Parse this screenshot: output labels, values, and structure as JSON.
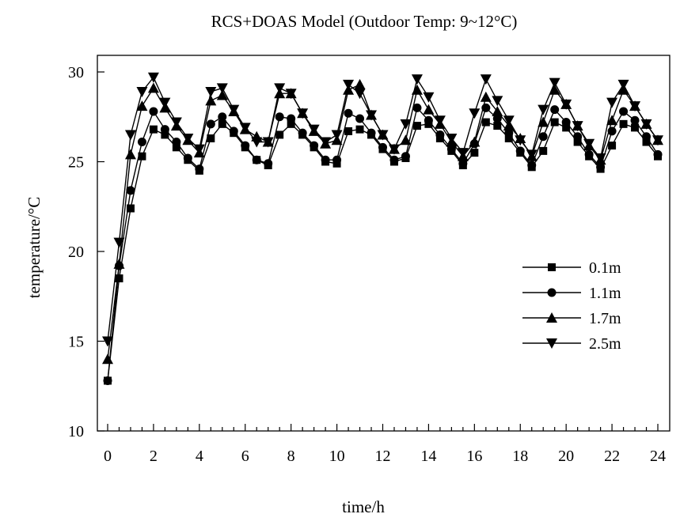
{
  "chart_data": {
    "type": "line",
    "title": "RCS+DOAS Model (Outdoor Temp: 9~12°C)",
    "xlabel": "time/h",
    "ylabel": "temperature/°C",
    "xlim": [
      0,
      24
    ],
    "ylim": [
      10,
      30
    ],
    "xticks": [
      0,
      2,
      4,
      6,
      8,
      10,
      12,
      14,
      16,
      18,
      20,
      22,
      24
    ],
    "yticks": [
      10,
      15,
      20,
      25,
      30
    ],
    "grid": false,
    "legend": {
      "position": "center-right"
    },
    "series": [
      {
        "name": "0.1m",
        "marker": "square",
        "x": [
          0,
          0.5,
          1,
          1.5,
          2,
          2.5,
          3,
          3.5,
          4,
          4.5,
          5,
          5.5,
          6,
          6.5,
          7,
          7.5,
          8,
          8.5,
          9,
          9.5,
          10,
          10.5,
          11,
          11.5,
          12,
          12.5,
          13,
          13.5,
          14,
          14.5,
          15,
          15.5,
          16,
          16.5,
          17,
          17.5,
          18,
          18.5,
          19,
          19.5,
          20,
          20.5,
          21,
          21.5,
          22,
          22.5,
          23,
          23.5,
          24
        ],
        "y": [
          12.8,
          18.5,
          22.4,
          25.3,
          26.8,
          26.5,
          25.8,
          25.1,
          24.5,
          26.3,
          27.1,
          26.6,
          25.8,
          25.1,
          24.8,
          26.5,
          27.1,
          26.5,
          25.8,
          25.0,
          24.9,
          26.7,
          26.8,
          26.5,
          25.7,
          25.0,
          25.2,
          27.0,
          27.1,
          26.3,
          25.6,
          24.8,
          25.5,
          27.2,
          27.0,
          26.3,
          25.5,
          24.7,
          25.6,
          27.2,
          26.9,
          26.1,
          25.3,
          24.6,
          25.9,
          27.1,
          26.9,
          26.1,
          25.3
        ]
      },
      {
        "name": "1.1m",
        "marker": "circle",
        "x": [
          0,
          0.5,
          1,
          1.5,
          2,
          2.5,
          3,
          3.5,
          4,
          4.5,
          5,
          5.5,
          6,
          6.5,
          7,
          7.5,
          8,
          8.5,
          9,
          9.5,
          10,
          10.5,
          11,
          11.5,
          12,
          12.5,
          13,
          13.5,
          14,
          14.5,
          15,
          15.5,
          16,
          16.5,
          17,
          17.5,
          18,
          18.5,
          19,
          19.5,
          20,
          20.5,
          21,
          21.5,
          22,
          22.5,
          23,
          23.5,
          24
        ],
        "y": [
          12.8,
          19.2,
          23.4,
          26.1,
          27.8,
          26.8,
          26.1,
          25.2,
          24.6,
          27.1,
          27.5,
          26.7,
          25.9,
          25.1,
          24.9,
          27.5,
          27.4,
          26.6,
          25.9,
          25.1,
          25.1,
          27.7,
          27.4,
          26.6,
          25.8,
          25.1,
          25.3,
          28.0,
          27.3,
          26.5,
          25.7,
          24.9,
          26.0,
          28.0,
          27.4,
          26.6,
          25.6,
          24.8,
          26.4,
          27.9,
          27.2,
          26.4,
          25.4,
          24.7,
          26.7,
          27.8,
          27.3,
          26.4,
          25.4
        ]
      },
      {
        "name": "1.7m",
        "marker": "triangle-up",
        "x": [
          0,
          0.5,
          1,
          1.5,
          2,
          2.5,
          3,
          3.5,
          4,
          4.5,
          5,
          5.5,
          6,
          6.5,
          7,
          7.5,
          8,
          8.5,
          9,
          9.5,
          10,
          10.5,
          11,
          11.5,
          12,
          12.5,
          13,
          13.5,
          14,
          14.5,
          15,
          15.5,
          16,
          16.5,
          17,
          17.5,
          18,
          18.5,
          19,
          19.5,
          20,
          20.5,
          21,
          21.5,
          22,
          22.5,
          23,
          23.5,
          24
        ],
        "y": [
          14.0,
          19.3,
          25.4,
          28.1,
          29.1,
          28.0,
          27.0,
          26.2,
          25.5,
          28.4,
          28.7,
          27.8,
          26.8,
          26.4,
          26.1,
          28.8,
          28.8,
          27.7,
          26.7,
          26.0,
          26.2,
          29.0,
          29.3,
          27.6,
          26.5,
          25.7,
          26.2,
          29.0,
          27.9,
          27.1,
          26.1,
          25.3,
          26.1,
          28.6,
          27.8,
          27.0,
          26.3,
          25.3,
          27.2,
          29.0,
          28.2,
          27.0,
          25.9,
          25.1,
          27.3,
          29.0,
          28.1,
          27.1,
          26.2
        ]
      },
      {
        "name": "2.5m",
        "marker": "triangle-down",
        "x": [
          0,
          0.5,
          1,
          1.5,
          2,
          2.5,
          3,
          3.5,
          4,
          4.5,
          5,
          5.5,
          6,
          6.5,
          7,
          7.5,
          8,
          8.5,
          9,
          9.5,
          10,
          10.5,
          11,
          11.5,
          12,
          12.5,
          13,
          13.5,
          14,
          14.5,
          15,
          15.5,
          16,
          16.5,
          17,
          17.5,
          18,
          18.5,
          19,
          19.5,
          20,
          20.5,
          21,
          21.5,
          22,
          22.5,
          23,
          23.5,
          24
        ],
        "y": [
          15.0,
          20.5,
          26.5,
          28.9,
          29.7,
          28.3,
          27.2,
          26.3,
          25.7,
          28.9,
          29.1,
          27.9,
          26.9,
          26.1,
          26.1,
          29.1,
          28.8,
          27.7,
          26.8,
          26.1,
          26.5,
          29.3,
          28.8,
          27.6,
          26.5,
          25.7,
          27.1,
          29.6,
          28.6,
          27.3,
          26.3,
          25.5,
          27.7,
          29.6,
          28.4,
          27.3,
          26.2,
          25.4,
          27.9,
          29.4,
          28.2,
          27.0,
          26.0,
          25.2,
          28.3,
          29.3,
          28.1,
          27.1,
          26.2
        ]
      }
    ]
  }
}
